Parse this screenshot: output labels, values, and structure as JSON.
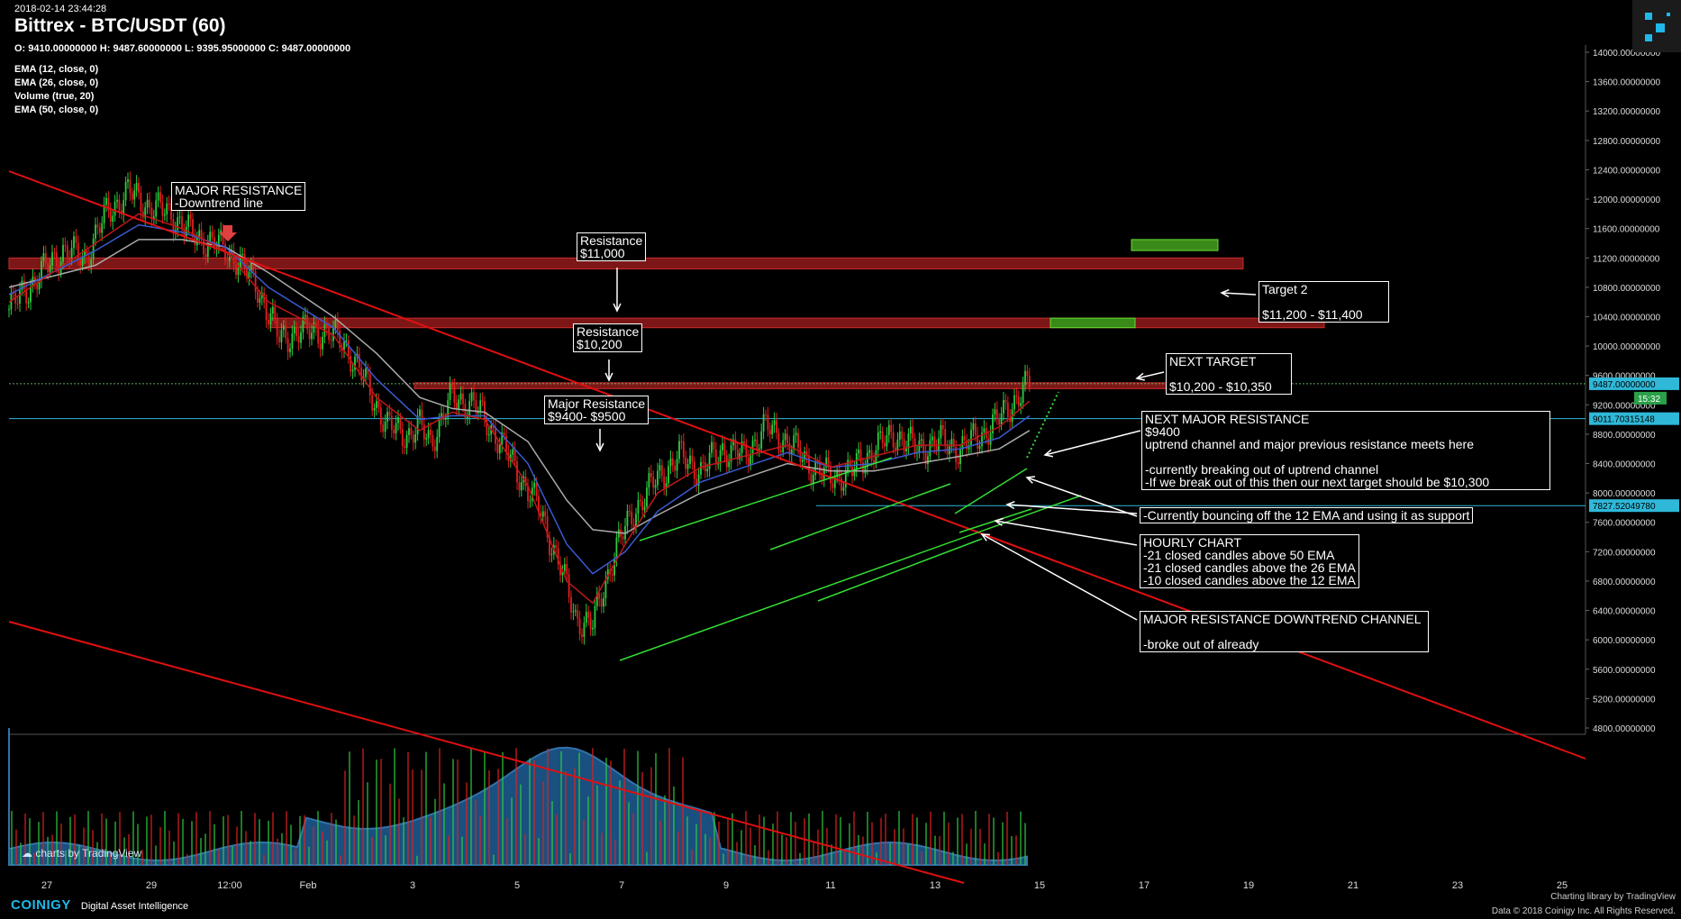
{
  "header": {
    "timestamp": "2018-02-14 23:44:28",
    "title": "Bittrex - BTC/USDT (60)",
    "ohlc": "O: 9410.00000000 H: 9487.60000000 L: 9395.95000000 C: 9487.00000000"
  },
  "indicators": [
    "EMA (12, close, 0)",
    "EMA (26, close, 0)",
    "Volume (true, 20)",
    "EMA (50, close, 0)"
  ],
  "chart_data": {
    "type": "candlestick",
    "title": "Bittrex - BTC/USDT (60)",
    "ylim": [
      4600,
      14200
    ],
    "y_ticks": [
      4800,
      5200,
      5600,
      6000,
      6400,
      6800,
      7200,
      7600,
      8000,
      8400,
      8800,
      9200,
      9600,
      10000,
      10400,
      10800,
      11200,
      11600,
      12000,
      12400,
      12800,
      13200,
      13600,
      14000
    ],
    "y_tick_labels": [
      "4800.00000000",
      "5200.00000000",
      "5600.00000000",
      "6000.00000000",
      "6400.00000000",
      "6800.00000000",
      "7200.00000000",
      "7600.00000000",
      "8000.00000000",
      "8400.00000000",
      "8800.00000000",
      "9200.00000000",
      "9600.00000000",
      "10000.00000000",
      "10400.00000000",
      "10800.00000000",
      "11200.00000000",
      "11600.00000000",
      "12000.00000000",
      "12400.00000000",
      "12800.00000000",
      "13200.00000000",
      "13600.00000000",
      "14000.00000000"
    ],
    "x_tick_labels": [
      "27",
      "29",
      "12:00",
      "Feb",
      "3",
      "5",
      "7",
      "9",
      "11",
      "13",
      "15",
      "17",
      "19",
      "21",
      "23",
      "25"
    ],
    "price_path": [
      [
        0,
        10500
      ],
      [
        15,
        11000
      ],
      [
        25,
        11300
      ],
      [
        35,
        11200
      ],
      [
        45,
        11800
      ],
      [
        55,
        12100
      ],
      [
        65,
        11900
      ],
      [
        75,
        11800
      ],
      [
        85,
        11500
      ],
      [
        95,
        11400
      ],
      [
        105,
        11200
      ],
      [
        115,
        10800
      ],
      [
        125,
        10100
      ],
      [
        135,
        10200
      ],
      [
        145,
        10200
      ],
      [
        155,
        10050
      ],
      [
        165,
        9500
      ],
      [
        175,
        8900
      ],
      [
        185,
        8800
      ],
      [
        190,
        8900
      ],
      [
        195,
        8700
      ],
      [
        205,
        9300
      ],
      [
        215,
        9200
      ],
      [
        225,
        8800
      ],
      [
        235,
        8300
      ],
      [
        245,
        7800
      ],
      [
        255,
        7000
      ],
      [
        262,
        6300
      ],
      [
        270,
        6200
      ],
      [
        280,
        7200
      ],
      [
        290,
        7800
      ],
      [
        300,
        8200
      ],
      [
        310,
        8500
      ],
      [
        320,
        8300
      ],
      [
        330,
        8600
      ],
      [
        340,
        8500
      ],
      [
        350,
        8900
      ],
      [
        360,
        8700
      ],
      [
        370,
        8400
      ],
      [
        380,
        8200
      ],
      [
        390,
        8300
      ],
      [
        400,
        8600
      ],
      [
        410,
        8800
      ],
      [
        420,
        8600
      ],
      [
        430,
        8700
      ],
      [
        440,
        8600
      ],
      [
        450,
        8800
      ],
      [
        458,
        9000
      ],
      [
        466,
        9300
      ],
      [
        472,
        9487
      ]
    ],
    "ema_12": [
      [
        0,
        10600
      ],
      [
        40,
        11400
      ],
      [
        60,
        11800
      ],
      [
        80,
        11600
      ],
      [
        100,
        11300
      ],
      [
        120,
        10600
      ],
      [
        150,
        10150
      ],
      [
        170,
        9300
      ],
      [
        190,
        8850
      ],
      [
        205,
        9100
      ],
      [
        220,
        9000
      ],
      [
        240,
        8100
      ],
      [
        258,
        6800
      ],
      [
        270,
        6500
      ],
      [
        285,
        7300
      ],
      [
        300,
        8000
      ],
      [
        320,
        8350
      ],
      [
        340,
        8500
      ],
      [
        360,
        8650
      ],
      [
        380,
        8350
      ],
      [
        400,
        8500
      ],
      [
        420,
        8650
      ],
      [
        440,
        8650
      ],
      [
        458,
        8900
      ],
      [
        472,
        9250
      ]
    ],
    "ema_26": [
      [
        0,
        10700
      ],
      [
        40,
        11300
      ],
      [
        60,
        11650
      ],
      [
        80,
        11550
      ],
      [
        100,
        11350
      ],
      [
        120,
        10800
      ],
      [
        150,
        10250
      ],
      [
        170,
        9550
      ],
      [
        190,
        9000
      ],
      [
        205,
        9050
      ],
      [
        220,
        9050
      ],
      [
        240,
        8400
      ],
      [
        258,
        7300
      ],
      [
        270,
        6900
      ],
      [
        285,
        7200
      ],
      [
        300,
        7750
      ],
      [
        320,
        8150
      ],
      [
        340,
        8350
      ],
      [
        360,
        8550
      ],
      [
        380,
        8350
      ],
      [
        400,
        8400
      ],
      [
        420,
        8550
      ],
      [
        440,
        8600
      ],
      [
        458,
        8750
      ],
      [
        472,
        9050
      ]
    ],
    "ema_50": [
      [
        0,
        10800
      ],
      [
        40,
        11100
      ],
      [
        60,
        11450
      ],
      [
        80,
        11450
      ],
      [
        100,
        11350
      ],
      [
        120,
        11000
      ],
      [
        150,
        10400
      ],
      [
        170,
        9900
      ],
      [
        190,
        9300
      ],
      [
        205,
        9150
      ],
      [
        220,
        9100
      ],
      [
        240,
        8700
      ],
      [
        258,
        7900
      ],
      [
        270,
        7500
      ],
      [
        285,
        7450
      ],
      [
        300,
        7700
      ],
      [
        320,
        8000
      ],
      [
        340,
        8200
      ],
      [
        360,
        8400
      ],
      [
        380,
        8300
      ],
      [
        400,
        8300
      ],
      [
        420,
        8400
      ],
      [
        440,
        8500
      ],
      [
        458,
        8600
      ],
      [
        472,
        8850
      ]
    ],
    "price_labels": [
      {
        "value": 9487,
        "text": "9487.00000000",
        "color": "#2fb8d8"
      },
      {
        "value": 9011.70315148,
        "text": "9011.70315148",
        "color": "#2fb8d8"
      },
      {
        "value": 7827.5204978,
        "text": "7827.52049780",
        "color": "#2fb8d8"
      }
    ],
    "countdown": "15:32",
    "resistance_zones": [
      {
        "from": 11050,
        "to": 11200,
        "label": "Resistance $11,000"
      },
      {
        "from": 10250,
        "to": 10380,
        "label": "Resistance $10,200"
      },
      {
        "from": 9420,
        "to": 9500,
        "label": "Major Resistance $9400- $9500"
      }
    ],
    "target_zones": [
      {
        "from": 11300,
        "to": 11450,
        "label": "Target 2"
      },
      {
        "from": 10250,
        "to": 10380,
        "label": "NEXT TARGET"
      }
    ]
  },
  "annotations": {
    "major_resistance_downtrend": "MAJOR RESISTANCE\n-Downtrend line",
    "resistance_11000": "Resistance\n$11,000",
    "resistance_10200": "Resistance\n$10,200",
    "major_resistance_9400": "Major Resistance\n$9400- $9500",
    "target2": "Target 2\n\n$11,200 - $11,400",
    "next_target": "NEXT TARGET\n\n$10,200 - $10,350",
    "next_major_resistance": "NEXT MAJOR RESISTANCE\n$9400\nuptrend channel and major previous resistance meets here\n\n-currently breaking out of uptrend channel\n-If we break out of this then our next target should be $10,300",
    "bouncing": "-Currently bouncing off the 12 EMA and using it as support",
    "hourly": "HOURLY CHART\n-21 closed candles above 50 EMA\n-21 closed candles above the 26 EMA\n-10 closed candles above the 12 EMA",
    "downtrend_channel": "MAJOR RESISTANCE DOWNTREND CHANNEL\n\n-broke out of already"
  },
  "branding": {
    "tv_logo": "charts by TradingView",
    "coinigy": "COINIGY",
    "tagline": "Digital Asset Intelligence",
    "charting_library": "Charting library by  TradingView",
    "copyright": "Data © 2018  Coinigy Inc. All Rights Reserved."
  },
  "colors": {
    "up": "#2ecc40",
    "down": "#e02020",
    "zone_red": "#8b1a1a",
    "zone_green": "#3a8a1a",
    "trend_red": "#e01010",
    "channel_green": "#33dd33",
    "cyan": "#2fb8d8"
  }
}
